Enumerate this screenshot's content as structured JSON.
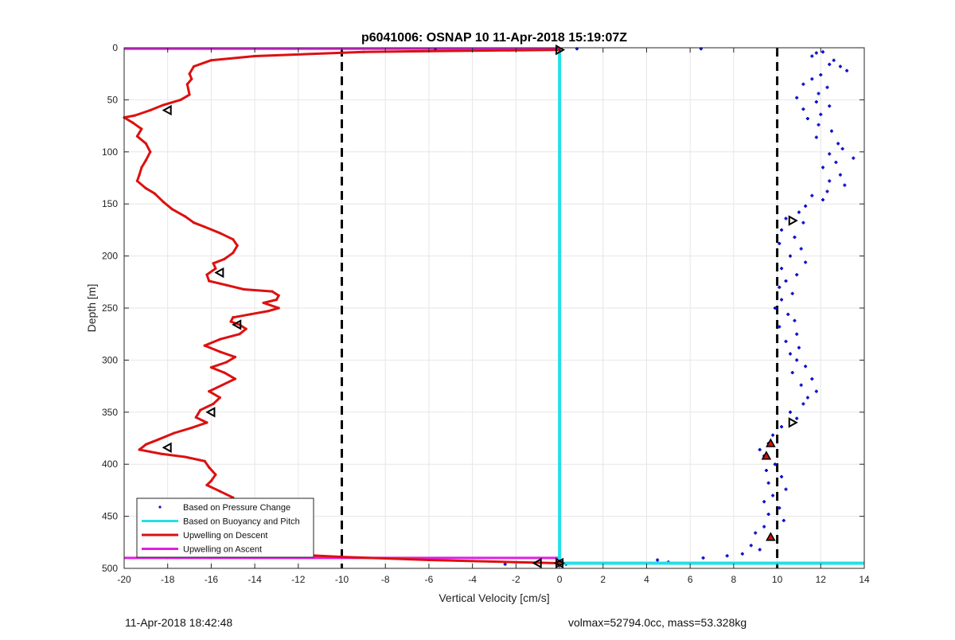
{
  "chart_data": {
    "type": "scatter",
    "title": "p6041006: OSNAP 10 11-Apr-2018 15:19:07Z",
    "xlabel": "Vertical Velocity [cm/s]",
    "ylabel": "Depth [m]",
    "xlim": [
      -20,
      14
    ],
    "ylim": [
      0,
      500
    ],
    "y_reversed": true,
    "grid": true,
    "xticks": [
      -20,
      -18,
      -16,
      -14,
      -12,
      -10,
      -8,
      -6,
      -4,
      -2,
      0,
      2,
      4,
      6,
      8,
      10,
      12,
      14
    ],
    "yticks": [
      0,
      50,
      100,
      150,
      200,
      250,
      300,
      350,
      400,
      450,
      500
    ],
    "legend_position": "bottom-left",
    "colors": {
      "pressure": "#1010c8",
      "buoyancy": "#22e0e6",
      "descent": "#dd1010",
      "ascent": "#e020e0",
      "reference": "#000000"
    },
    "series": [
      {
        "name": "Based on Pressure Change",
        "style": "dots",
        "points": [
          [
            0.8,
            1
          ],
          [
            6.5,
            1
          ],
          [
            -5.7,
            2
          ],
          [
            11.8,
            5
          ],
          [
            12.1,
            4
          ],
          [
            12.6,
            12
          ],
          [
            11.6,
            8
          ],
          [
            12.9,
            18
          ],
          [
            12.4,
            16
          ],
          [
            13.2,
            22
          ],
          [
            12.0,
            26
          ],
          [
            11.2,
            35
          ],
          [
            11.6,
            30
          ],
          [
            12.3,
            38
          ],
          [
            11.9,
            44
          ],
          [
            10.9,
            48
          ],
          [
            11.8,
            52
          ],
          [
            12.4,
            56
          ],
          [
            11.2,
            59
          ],
          [
            12.0,
            64
          ],
          [
            11.4,
            68
          ],
          [
            11.9,
            74
          ],
          [
            12.5,
            80
          ],
          [
            11.8,
            86
          ],
          [
            12.8,
            92
          ],
          [
            13.0,
            97
          ],
          [
            12.4,
            102
          ],
          [
            13.5,
            106
          ],
          [
            12.7,
            110
          ],
          [
            12.1,
            115
          ],
          [
            12.9,
            122
          ],
          [
            12.4,
            128
          ],
          [
            13.1,
            132
          ],
          [
            12.3,
            138
          ],
          [
            11.6,
            142
          ],
          [
            12.1,
            146
          ],
          [
            11.3,
            152
          ],
          [
            11.0,
            158
          ],
          [
            10.4,
            164
          ],
          [
            11.2,
            168
          ],
          [
            10.2,
            175
          ],
          [
            10.8,
            182
          ],
          [
            10.1,
            188
          ],
          [
            11.1,
            193
          ],
          [
            10.6,
            200
          ],
          [
            11.3,
            206
          ],
          [
            10.2,
            212
          ],
          [
            10.9,
            218
          ],
          [
            10.4,
            224
          ],
          [
            10.1,
            230
          ],
          [
            10.7,
            236
          ],
          [
            10.2,
            242
          ],
          [
            9.9,
            250
          ],
          [
            10.5,
            256
          ],
          [
            10.8,
            262
          ],
          [
            10.1,
            268
          ],
          [
            10.9,
            275
          ],
          [
            10.4,
            282
          ],
          [
            11.0,
            288
          ],
          [
            10.6,
            294
          ],
          [
            10.9,
            300
          ],
          [
            11.3,
            306
          ],
          [
            10.7,
            312
          ],
          [
            11.6,
            318
          ],
          [
            11.1,
            324
          ],
          [
            11.8,
            330
          ],
          [
            11.4,
            336
          ],
          [
            11.2,
            342
          ],
          [
            10.6,
            350
          ],
          [
            10.9,
            356
          ],
          [
            10.2,
            364
          ],
          [
            9.8,
            372
          ],
          [
            9.6,
            380
          ],
          [
            9.2,
            386
          ],
          [
            9.4,
            392
          ],
          [
            9.9,
            400
          ],
          [
            9.5,
            406
          ],
          [
            10.2,
            412
          ],
          [
            9.6,
            418
          ],
          [
            10.4,
            424
          ],
          [
            9.8,
            430
          ],
          [
            9.4,
            436
          ],
          [
            10.1,
            442
          ],
          [
            9.6,
            448
          ],
          [
            10.3,
            454
          ],
          [
            9.4,
            460
          ],
          [
            9.0,
            466
          ],
          [
            9.6,
            472
          ],
          [
            8.8,
            478
          ],
          [
            9.2,
            482
          ],
          [
            8.4,
            486
          ],
          [
            7.7,
            488
          ],
          [
            6.6,
            490
          ],
          [
            4.5,
            492
          ],
          [
            5.0,
            494
          ],
          [
            2.1,
            495
          ],
          [
            0.3,
            496
          ],
          [
            -2.5,
            496
          ]
        ]
      },
      {
        "name": "Based on Buoyancy and Pitch",
        "style": "line",
        "points": [
          [
            0,
            2
          ],
          [
            0,
            495
          ],
          [
            14,
            495
          ]
        ]
      },
      {
        "name": "Upwelling on Descent",
        "style": "line",
        "points": [
          [
            0,
            2
          ],
          [
            -9,
            4
          ],
          [
            -14,
            8
          ],
          [
            -16,
            12
          ],
          [
            -16.8,
            18
          ],
          [
            -17,
            25
          ],
          [
            -16.9,
            30
          ],
          [
            -17.1,
            35
          ],
          [
            -17.0,
            45
          ],
          [
            -17.4,
            50
          ],
          [
            -18.2,
            55
          ],
          [
            -18.8,
            60
          ],
          [
            -19.5,
            65
          ],
          [
            -20,
            67
          ],
          [
            -19.6,
            72
          ],
          [
            -19.2,
            78
          ],
          [
            -19.4,
            85
          ],
          [
            -19.0,
            92
          ],
          [
            -18.8,
            100
          ],
          [
            -19.0,
            108
          ],
          [
            -19.2,
            115
          ],
          [
            -19.3,
            122
          ],
          [
            -19.4,
            128
          ],
          [
            -19.0,
            135
          ],
          [
            -18.6,
            140
          ],
          [
            -18.2,
            148
          ],
          [
            -17.8,
            155
          ],
          [
            -17.2,
            162
          ],
          [
            -16.8,
            168
          ],
          [
            -16.3,
            172
          ],
          [
            -15.6,
            178
          ],
          [
            -15.0,
            184
          ],
          [
            -14.8,
            190
          ],
          [
            -15.0,
            197
          ],
          [
            -15.4,
            203
          ],
          [
            -15.9,
            207
          ],
          [
            -15.8,
            212
          ],
          [
            -16.2,
            218
          ],
          [
            -16.1,
            224
          ],
          [
            -15.3,
            228
          ],
          [
            -14.5,
            232
          ],
          [
            -13.2,
            234
          ],
          [
            -12.9,
            238
          ],
          [
            -13.0,
            242
          ],
          [
            -13.6,
            245
          ],
          [
            -12.9,
            250
          ],
          [
            -13.4,
            253
          ],
          [
            -14.2,
            256
          ],
          [
            -15.0,
            259
          ],
          [
            -15.1,
            263
          ],
          [
            -14.7,
            266
          ],
          [
            -14.4,
            270
          ],
          [
            -14.7,
            275
          ],
          [
            -15.6,
            280
          ],
          [
            -16.3,
            286
          ],
          [
            -15.6,
            292
          ],
          [
            -14.9,
            297
          ],
          [
            -15.3,
            302
          ],
          [
            -16.0,
            307
          ],
          [
            -15.4,
            312
          ],
          [
            -14.9,
            318
          ],
          [
            -15.5,
            324
          ],
          [
            -16.1,
            330
          ],
          [
            -15.6,
            336
          ],
          [
            -15.9,
            342
          ],
          [
            -16.5,
            348
          ],
          [
            -16.7,
            355
          ],
          [
            -16.2,
            360
          ],
          [
            -16.9,
            365
          ],
          [
            -17.7,
            370
          ],
          [
            -18.4,
            376
          ],
          [
            -19.0,
            381
          ],
          [
            -19.3,
            386
          ],
          [
            -18.3,
            390
          ],
          [
            -17.2,
            393
          ],
          [
            -16.3,
            397
          ],
          [
            -16.1,
            403
          ],
          [
            -15.8,
            410
          ],
          [
            -16.0,
            416
          ],
          [
            -16.2,
            420
          ],
          [
            -15.6,
            426
          ],
          [
            -15.0,
            432
          ],
          [
            -14.8,
            440
          ],
          [
            -15.3,
            448
          ],
          [
            -15.8,
            455
          ],
          [
            -15.6,
            462
          ],
          [
            -16.0,
            468
          ],
          [
            -16.3,
            472
          ],
          [
            -15.8,
            477
          ],
          [
            -14.8,
            482
          ],
          [
            -13.0,
            486
          ],
          [
            -10.0,
            489
          ],
          [
            -6.0,
            492
          ],
          [
            -2.0,
            494
          ],
          [
            0,
            495
          ]
        ]
      },
      {
        "name": "Upwelling on Ascent",
        "style": "line",
        "points": [
          [
            -20,
            1
          ],
          [
            0,
            1
          ],
          [
            -20,
            490
          ],
          [
            0,
            490
          ]
        ]
      }
    ],
    "reference_lines_x": [
      -10,
      0,
      10
    ],
    "markers_left": [
      [
        -18.0,
        60
      ],
      [
        -15.6,
        216
      ],
      [
        -14.8,
        266
      ],
      [
        -16.0,
        350
      ],
      [
        -18.0,
        384
      ],
      [
        -15.8,
        470
      ],
      [
        -1.0,
        495
      ],
      [
        0,
        495
      ]
    ],
    "markers_right": [
      [
        0,
        2
      ],
      [
        10.7,
        166
      ],
      [
        10.7,
        360
      ],
      [
        0,
        495
      ]
    ],
    "markers_filled": [
      [
        9.7,
        380
      ],
      [
        9.5,
        392
      ],
      [
        9.7,
        470
      ]
    ]
  },
  "footer": {
    "left": "11-Apr-2018 18:42:48",
    "right": "volmax=52794.0cc, mass=53.328kg"
  }
}
